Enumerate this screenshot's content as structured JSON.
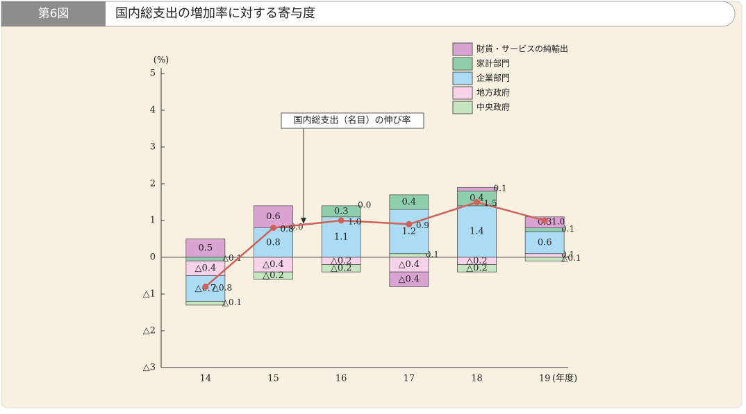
{
  "header": {
    "figure_no": "第6図",
    "title": "国内総支出の増加率に対する寄与度"
  },
  "chart_data": {
    "type": "stacked-bar-line",
    "y_unit": "(%)",
    "x_unit": "(年度)",
    "annotation": "国内総支出（名目）の伸び率",
    "categories": [
      "14",
      "15",
      "16",
      "17",
      "18",
      "19"
    ],
    "ylim": [
      -3,
      5
    ],
    "yticks": [
      {
        "value": -3,
        "label": "△3"
      },
      {
        "value": -2,
        "label": "△2"
      },
      {
        "value": -1,
        "label": "△1"
      },
      0,
      1,
      2,
      3,
      4,
      5
    ],
    "series": [
      {
        "name": "財貨・サービスの純輸出",
        "color": "#d9a3d2",
        "values": [
          0.5,
          0.6,
          0.0,
          -0.4,
          0.1,
          0.3
        ],
        "value_labels": [
          "0.5",
          "0.6",
          "0.0",
          "△0.4",
          "0.1",
          "0.3"
        ]
      },
      {
        "name": "家計部門",
        "color": "#8fcfae",
        "values": [
          -0.1,
          0.0,
          0.3,
          0.4,
          0.4,
          0.1
        ],
        "value_labels": [
          "△0.1",
          "0.0",
          "0.3",
          "0.4",
          "0.4",
          "0.1"
        ]
      },
      {
        "name": "企業部門",
        "color": "#abdcf3",
        "values": [
          -0.7,
          0.8,
          1.1,
          1.2,
          1.4,
          0.6
        ],
        "value_labels": [
          "△0.7",
          "0.8",
          "1.1",
          "1.2",
          "1.4",
          "0.6"
        ]
      },
      {
        "name": "地方政府",
        "color": "#f6d3e8",
        "values": [
          -0.4,
          -0.4,
          -0.2,
          -0.4,
          -0.2,
          0.1
        ],
        "value_labels": [
          "△0.4",
          "△0.4",
          "△0.2",
          "△0.4",
          "△0.2",
          "0.1"
        ]
      },
      {
        "name": "中央政府",
        "color": "#c6e6c1",
        "values": [
          -0.1,
          -0.2,
          -0.2,
          0.1,
          -0.2,
          -0.1
        ],
        "value_labels": [
          "△0.1",
          "△0.2",
          "△0.2",
          "0.1",
          "△0.2",
          "△0.1"
        ]
      }
    ],
    "line": {
      "name": "国内総支出（名目）の伸び率",
      "color": "#d0605a",
      "values": [
        -0.8,
        0.8,
        1.0,
        0.9,
        1.5,
        1.0
      ],
      "value_labels": [
        "△0.8",
        "0.8",
        "1.0",
        "0.9",
        "1.5",
        "1.0"
      ]
    }
  }
}
